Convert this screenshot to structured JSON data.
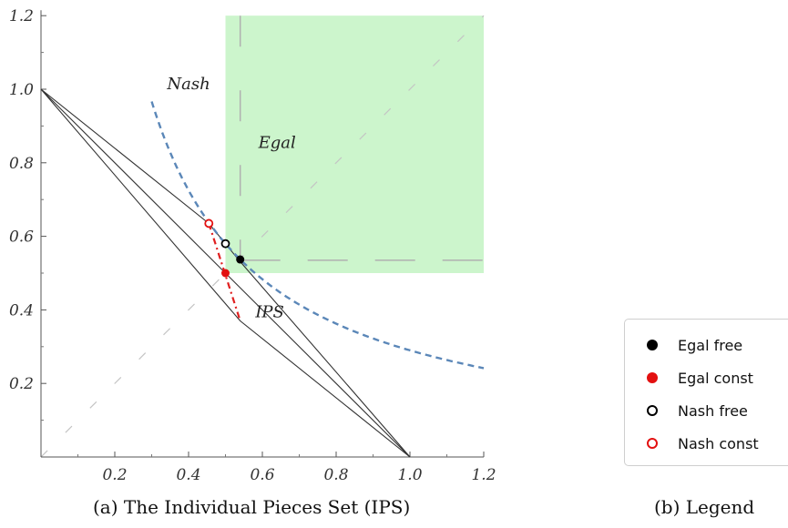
{
  "chart_data": [
    {
      "type": "line",
      "xlim": [
        0,
        1.2
      ],
      "ylim": [
        0,
        1.2
      ],
      "x_ticks": [
        "0.2",
        "0.4",
        "0.6",
        "0.8",
        "1.0",
        "1.2"
      ],
      "y_ticks": [
        "0.2",
        "0.4",
        "0.6",
        "0.8",
        "1.0",
        "1.2"
      ],
      "grid": false,
      "shaded_region": {
        "x": [
          0.5,
          1.2
        ],
        "y": [
          0.5,
          1.2
        ],
        "color": "#ccf5cc"
      },
      "diagonal": {
        "points": [
          [
            0.0,
            0.0
          ],
          [
            1.2,
            1.2
          ]
        ],
        "color": "#c4c4c4"
      },
      "ips_outline": {
        "color": "#333333",
        "outer": [
          [
            0,
            1.0
          ],
          [
            0.455,
            0.635
          ],
          [
            0.535,
            0.537
          ],
          [
            1.0,
            0.0
          ],
          [
            0.54,
            0.37
          ],
          [
            0,
            1.0
          ]
        ],
        "inner": [
          [
            0,
            1.0
          ],
          [
            1.0,
            0.0
          ]
        ]
      },
      "nash_curve": {
        "color": "#5b87b8",
        "x_range": [
          0.3,
          1.2
        ],
        "product": 0.29
      },
      "egal_guides": {
        "color": "#b0b0b0",
        "vertical": [
          [
            0.54,
            1.2
          ],
          [
            0.54,
            0.535
          ]
        ],
        "horizontal": [
          [
            0.54,
            0.535
          ],
          [
            1.2,
            0.535
          ]
        ]
      },
      "ips_const_segment": {
        "color": "#e02020",
        "points": [
          [
            0.455,
            0.635
          ],
          [
            0.54,
            0.37
          ]
        ]
      },
      "points": [
        {
          "label": "Egal free",
          "x": 0.54,
          "y": 0.537,
          "filled": true,
          "color": "#000000"
        },
        {
          "label": "Egal const",
          "x": 0.5,
          "y": 0.5,
          "filled": true,
          "color": "#e31010"
        },
        {
          "label": "Nash free",
          "x": 0.5,
          "y": 0.58,
          "filled": false,
          "color": "#000000"
        },
        {
          "label": "Nash const",
          "x": 0.455,
          "y": 0.635,
          "filled": false,
          "color": "#e31010"
        }
      ],
      "annotations": [
        {
          "text": "Nash",
          "x": 0.4,
          "y": 1.0
        },
        {
          "text": "Egal",
          "x": 0.64,
          "y": 0.84
        },
        {
          "text": "IPS",
          "x": 0.62,
          "y": 0.38
        }
      ]
    }
  ],
  "captions": {
    "a": "(a) The Individual Pieces Set (IPS)",
    "b": "(b) Legend"
  },
  "legend": {
    "items": [
      {
        "label": "Egal free",
        "color": "#000000",
        "filled": true
      },
      {
        "label": "Egal const",
        "color": "#e31010",
        "filled": true
      },
      {
        "label": "Nash free",
        "color": "#000000",
        "filled": false
      },
      {
        "label": "Nash const",
        "color": "#e31010",
        "filled": false
      }
    ]
  }
}
